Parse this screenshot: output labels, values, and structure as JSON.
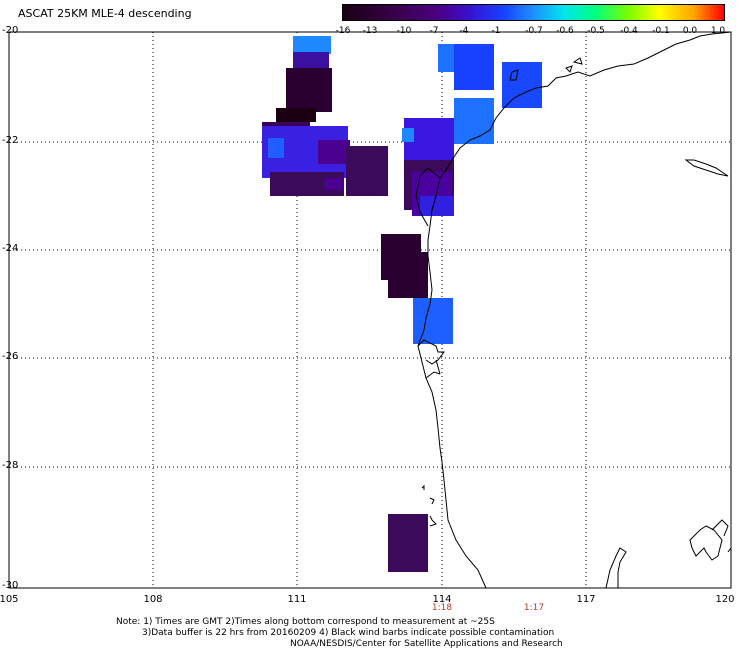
{
  "title": "ASCAT 25KM MLE-4 descending",
  "colorbar": {
    "labels": [
      "-16",
      "-13",
      "-10",
      "-7",
      "-4",
      "-1",
      "-0.7",
      "-0.6",
      "-0.5",
      "-0.4",
      "-0.1",
      "0.0",
      "1.0"
    ],
    "colors": [
      "#1a0010",
      "#3a0050",
      "#4b0082",
      "#3a10d0",
      "#1840ff",
      "#1e90ff",
      "#00e5ee",
      "#00ff80",
      "#7cfc00",
      "#ffff00",
      "#ffa500",
      "#ff4500",
      "#ff0000"
    ]
  },
  "axes": {
    "lat_labels": [
      "-20",
      "-22",
      "-24",
      "-26",
      "-28",
      "-30"
    ],
    "lon_labels": [
      "105",
      "108",
      "111",
      "114",
      "117",
      "120"
    ]
  },
  "time_labels": [
    "1:18",
    "1:17"
  ],
  "notes": [
    "Note: 1) Times are GMT 2)Times along bottom correspond to measurement at ~25S",
    "3)Data buffer is 22 hrs from 20160209 4) Black wind barbs indicate possible contamination",
    "NOAA/NESDIS/Center for Satellite Applications and Research"
  ],
  "colors": {
    "dark_purple": "#2a0030",
    "mid_purple": "#3c0a5a",
    "violet": "#4b0090",
    "blue_violet": "#3020e0",
    "blue": "#1848ff",
    "light_blue": "#1e88ff",
    "coast": "#000000",
    "grid": "#000000"
  }
}
